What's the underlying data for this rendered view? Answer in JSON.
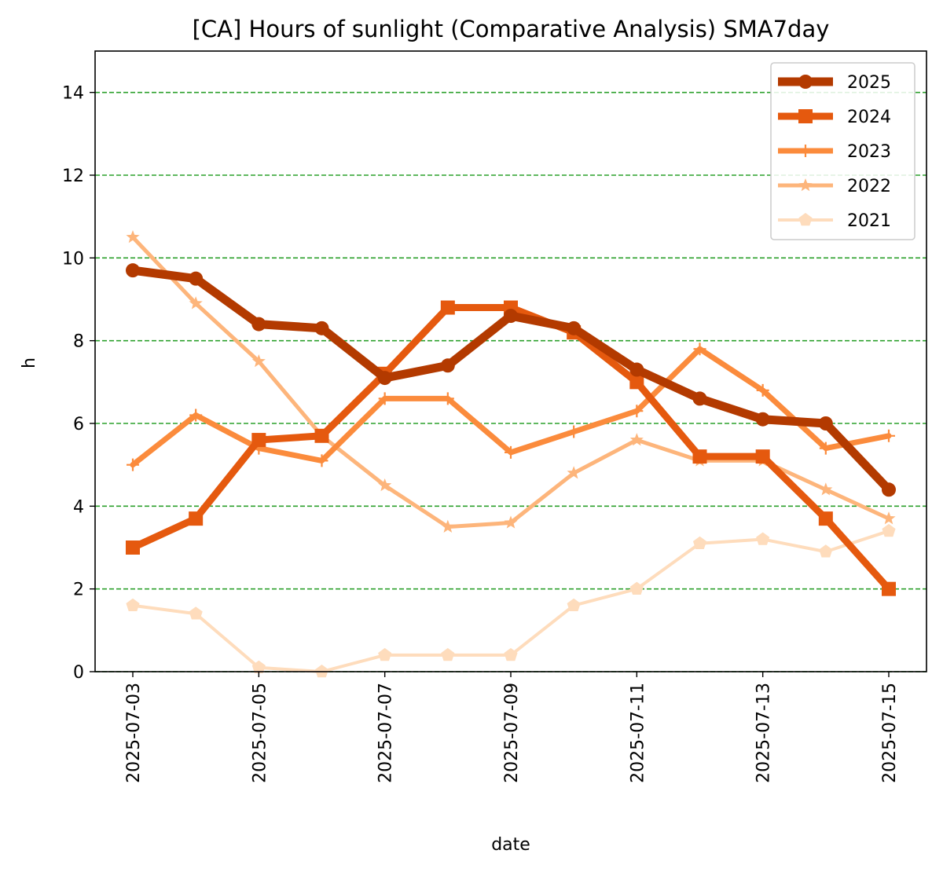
{
  "chart_data": {
    "type": "line",
    "title": "[CA] Hours of sunlight (Comparative Analysis) SMA7day",
    "xlabel": "date",
    "ylabel": "h",
    "ylim": [
      0,
      15
    ],
    "yticks": [
      0,
      2,
      4,
      6,
      8,
      10,
      12,
      14
    ],
    "x": [
      "2025-07-03",
      "2025-07-04",
      "2025-07-05",
      "2025-07-06",
      "2025-07-07",
      "2025-07-08",
      "2025-07-09",
      "2025-07-10",
      "2025-07-11",
      "2025-07-12",
      "2025-07-13",
      "2025-07-14",
      "2025-07-15"
    ],
    "xticks": [
      "2025-07-03",
      "2025-07-05",
      "2025-07-07",
      "2025-07-09",
      "2025-07-11",
      "2025-07-13",
      "2025-07-15"
    ],
    "grid": "horizontal dashed",
    "grid_color": "#2ca02c",
    "legend_position": "top-right",
    "series": [
      {
        "name": "2025",
        "color": "#b33a00",
        "marker": "circle",
        "width": 11,
        "values": [
          9.7,
          9.5,
          8.4,
          8.3,
          7.1,
          7.4,
          8.6,
          8.3,
          7.3,
          6.6,
          6.1,
          6.0,
          4.4
        ]
      },
      {
        "name": "2024",
        "color": "#e5590e",
        "marker": "square",
        "width": 9,
        "values": [
          3.0,
          3.7,
          5.6,
          5.7,
          7.2,
          8.8,
          8.8,
          8.2,
          7.0,
          5.2,
          5.2,
          3.7,
          2.0
        ]
      },
      {
        "name": "2023",
        "color": "#fb8b3c",
        "marker": "plus",
        "width": 7,
        "values": [
          5.0,
          6.2,
          5.4,
          5.1,
          6.6,
          6.6,
          5.3,
          5.8,
          6.3,
          7.8,
          6.8,
          5.4,
          5.7
        ]
      },
      {
        "name": "2022",
        "color": "#fdb57b",
        "marker": "star",
        "width": 5,
        "values": [
          10.5,
          8.9,
          7.5,
          5.7,
          4.5,
          3.5,
          3.6,
          4.8,
          5.6,
          5.1,
          5.1,
          4.4,
          3.7
        ]
      },
      {
        "name": "2021",
        "color": "#fedcbc",
        "marker": "pentagon",
        "width": 4,
        "values": [
          1.6,
          1.4,
          0.1,
          0.0,
          0.4,
          0.4,
          0.4,
          1.6,
          2.0,
          3.1,
          3.2,
          2.9,
          3.4
        ]
      }
    ]
  }
}
